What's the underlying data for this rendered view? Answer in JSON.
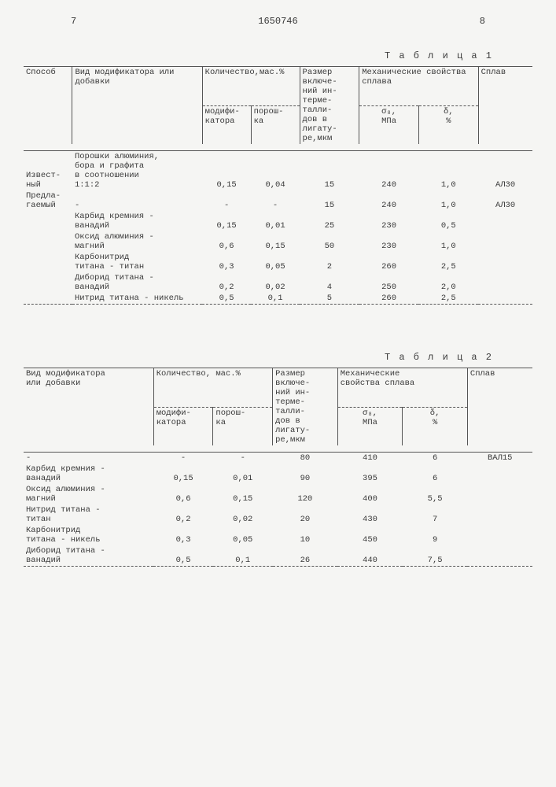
{
  "page": {
    "left_num": "7",
    "doc_num": "1650746",
    "right_num": "8"
  },
  "table1": {
    "caption": "Т а б л и ц а  1",
    "head": {
      "c1": "Способ",
      "c2": "Вид модификатора или  добавки",
      "c3": "Количество,мас.%",
      "c3a": "модифи-\nкатора",
      "c3b": "порош-\nка",
      "c4": "Размер включе-\nний ин-\nтерме-\nталли-\nдов в\nлигату-\nре,мкм",
      "c5": "Механические свойства сплава",
      "c5a": "σ₈,\nМПа",
      "c5b": "δ,\n%",
      "c6": "Сплав"
    },
    "rows": [
      {
        "c1": "Извест-\nный",
        "c2": "Порошки алюминия,\nбора и графита\nв соотношении\n1:1:2",
        "c3a": "0,15",
        "c3b": "0,04",
        "c4": "15",
        "c5a": "240",
        "c5b": "1,0",
        "c6": "АЛ30"
      },
      {
        "c1": "Предла-\nгаемый",
        "c2": "-",
        "c3a": "-",
        "c3b": "-",
        "c4": "15",
        "c5a": "240",
        "c5b": "1,0",
        "c6": "АЛ30"
      },
      {
        "c1": "",
        "c2": "Карбид кремния -\nванадий",
        "c3a": "0,15",
        "c3b": "0,01",
        "c4": "25",
        "c5a": "230",
        "c5b": "0,5",
        "c6": ""
      },
      {
        "c1": "",
        "c2": "Оксид алюминия -\nмагний",
        "c3a": "0,6",
        "c3b": "0,15",
        "c4": "50",
        "c5a": "230",
        "c5b": "1,0",
        "c6": ""
      },
      {
        "c1": "",
        "c2": "Карбонитрид\nтитана - титан",
        "c3a": "0,3",
        "c3b": "0,05",
        "c4": "2",
        "c5a": "260",
        "c5b": "2,5",
        "c6": ""
      },
      {
        "c1": "",
        "c2": "Диборид титана -\nванадий",
        "c3a": "0,2",
        "c3b": "0,02",
        "c4": "4",
        "c5a": "250",
        "c5b": "2,0",
        "c6": ""
      },
      {
        "c1": "",
        "c2": "Нитрид титана - никель",
        "c3a": "0,5",
        "c3b": "0,1",
        "c4": "5",
        "c5a": "260",
        "c5b": "2,5",
        "c6": ""
      }
    ]
  },
  "table2": {
    "caption": "Т а б л и ц а   2",
    "head": {
      "c1": "Вид модификатора\nили  добавки",
      "c2": "Количество, мас.%",
      "c2a": "модифи-\nкатора",
      "c2b": "порош-\nка",
      "c3": "Размер\nвключе-\nний ин-\nтерме-\nталли-\nдов в\nлигату-\nре,мкм",
      "c4": "Механические\nсвойства сплава",
      "c4a": "σ₈,\nМПа",
      "c4b": "δ,\n%",
      "c5": "Сплав"
    },
    "rows": [
      {
        "c1": "-",
        "c2a": "-",
        "c2b": "-",
        "c3": "80",
        "c4a": "410",
        "c4b": "6",
        "c5": "ВАЛ15"
      },
      {
        "c1": "Карбид кремния -\nванадий",
        "c2a": "0,15",
        "c2b": "0,01",
        "c3": "90",
        "c4a": "395",
        "c4b": "6",
        "c5": ""
      },
      {
        "c1": "Оксид алюминия -\nмагний",
        "c2a": "0,6",
        "c2b": "0,15",
        "c3": "120",
        "c4a": "400",
        "c4b": "5,5",
        "c5": ""
      },
      {
        "c1": "Нитрид титана -\nтитан",
        "c2a": "0,2",
        "c2b": "0,02",
        "c3": "20",
        "c4a": "430",
        "c4b": "7",
        "c5": ""
      },
      {
        "c1": "Карбонитрид\nтитана - никель",
        "c2a": "0,3",
        "c2b": "0,05",
        "c3": "10",
        "c4a": "450",
        "c4b": "9",
        "c5": ""
      },
      {
        "c1": "Диборид титана -\nванадий",
        "c2a": "0,5",
        "c2b": "0,1",
        "c3": "26",
        "c4a": "440",
        "c4b": "7,5",
        "c5": ""
      }
    ]
  }
}
